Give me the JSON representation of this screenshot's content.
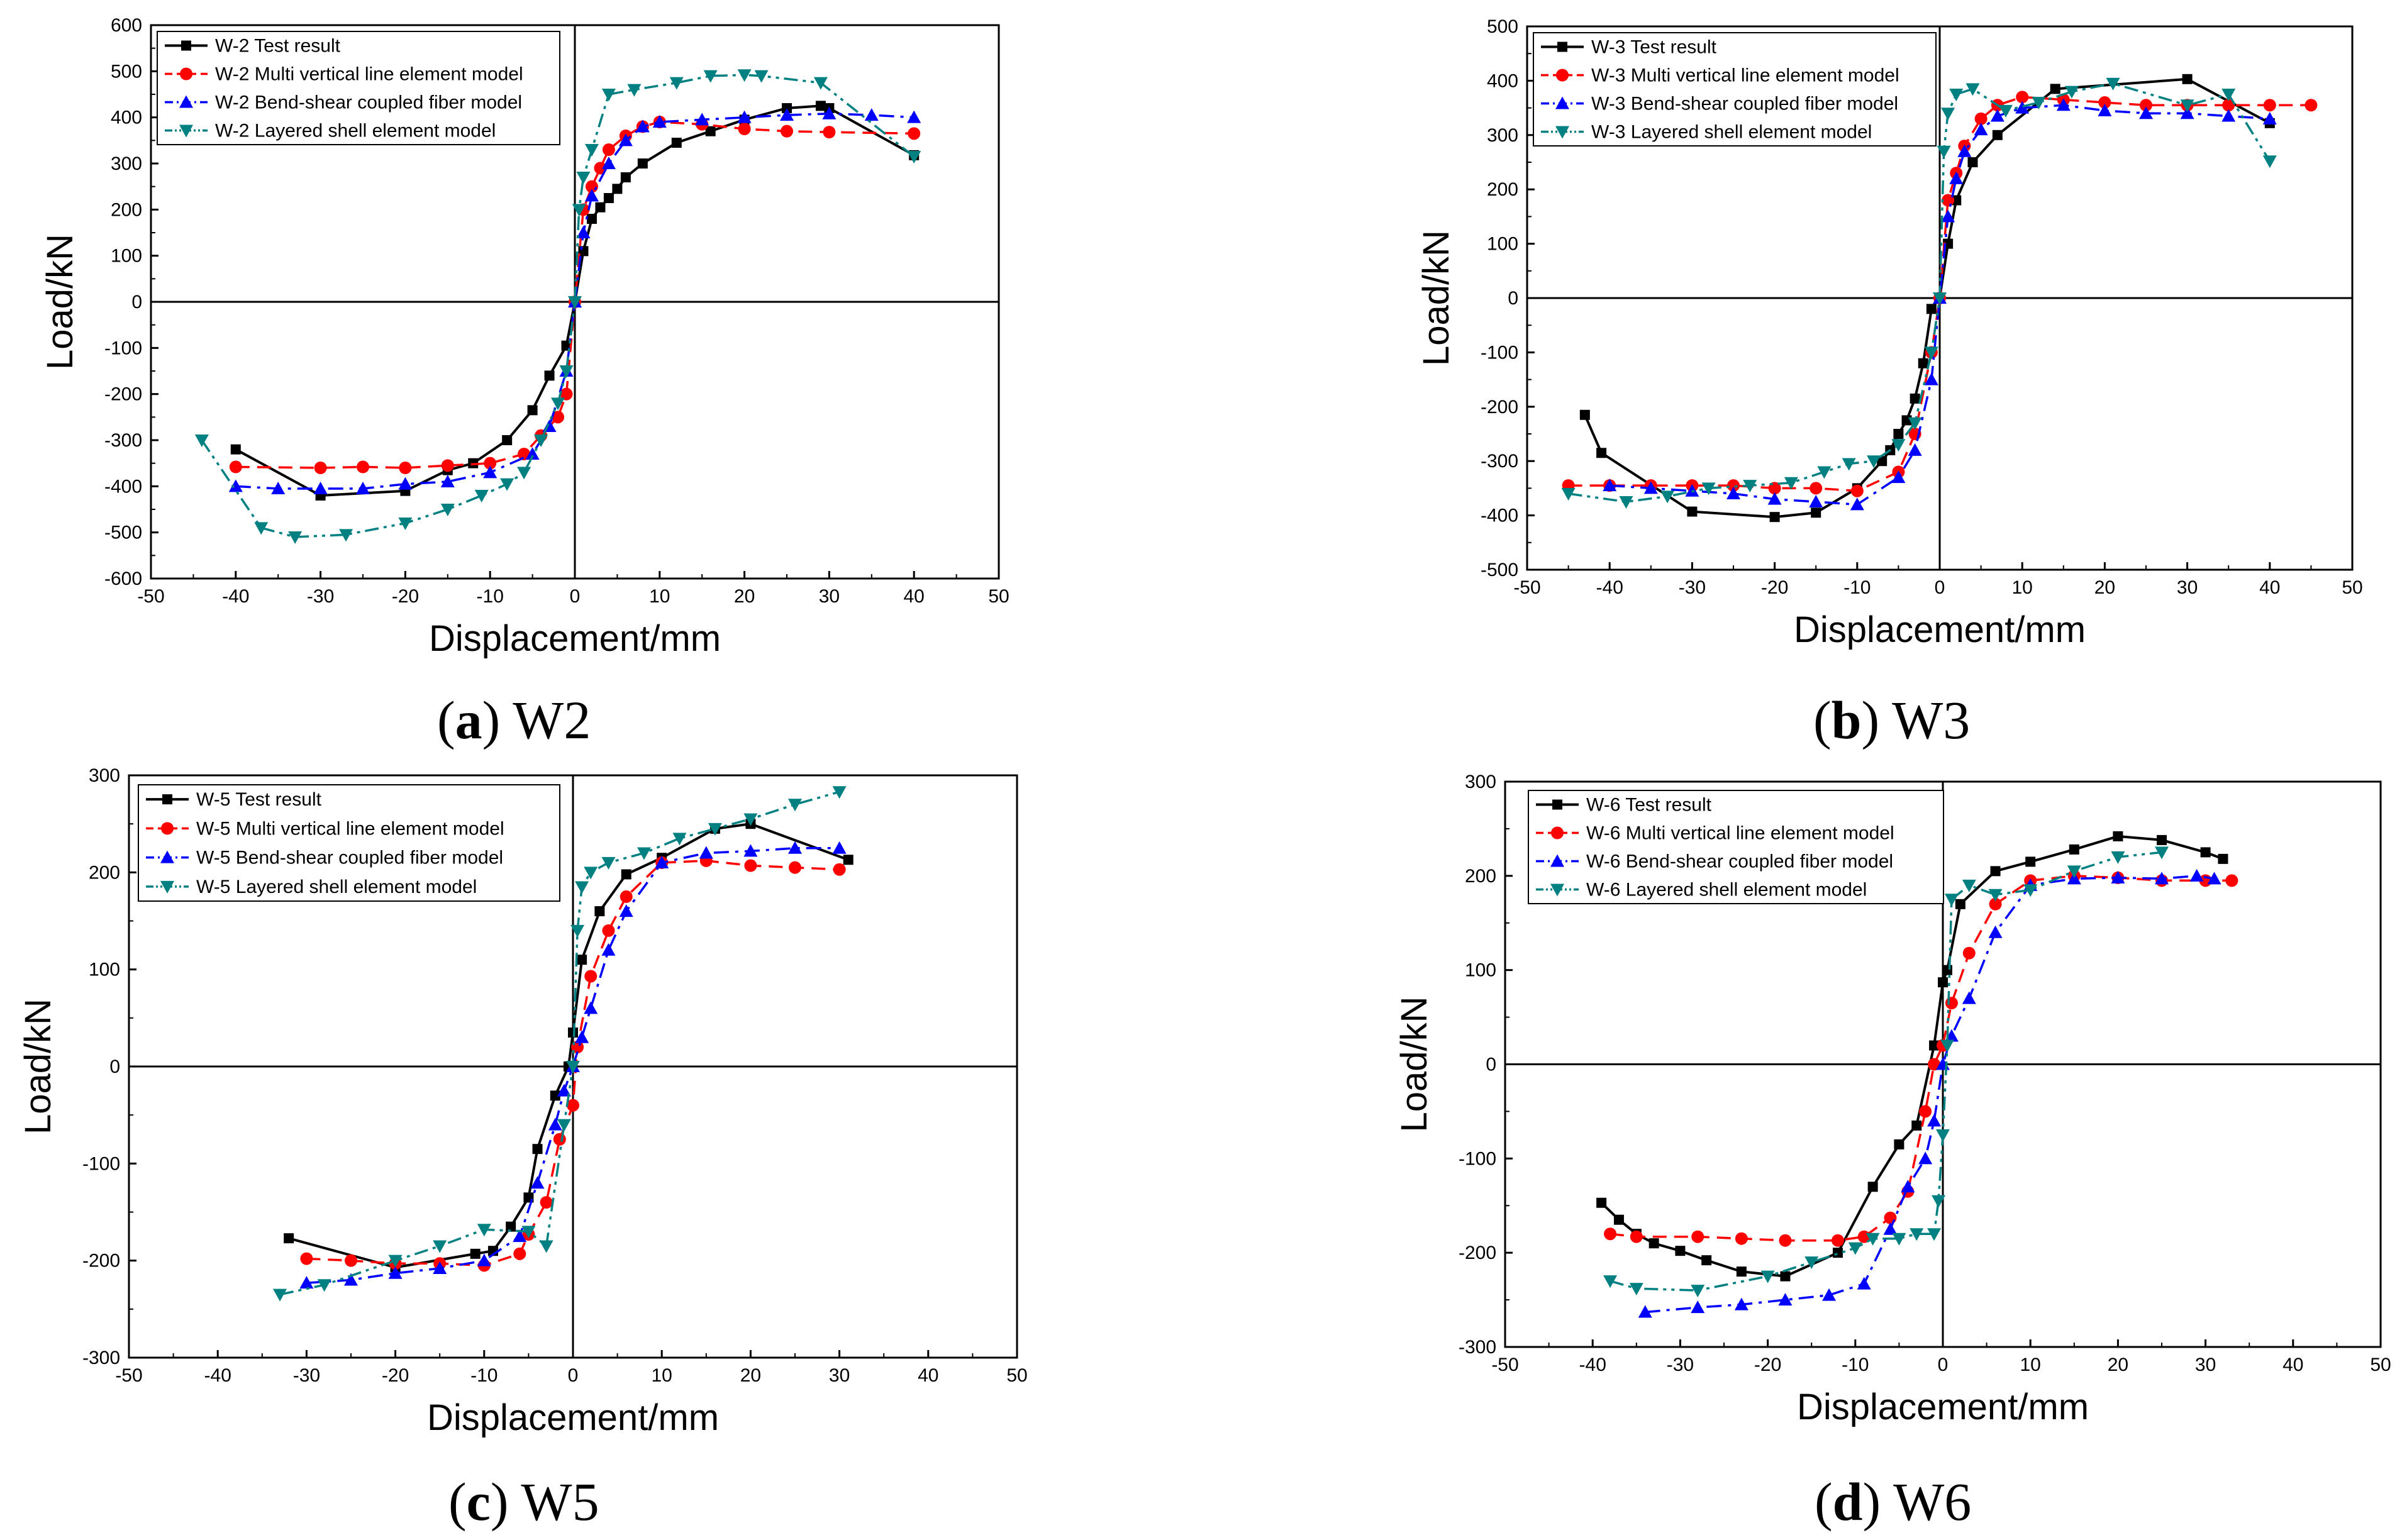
{
  "figure": {
    "panels": [
      "a",
      "b",
      "c",
      "d"
    ]
  },
  "colors": {
    "test": "#000000",
    "multi": "#ff0000",
    "bend": "#0000ff",
    "shell": "#008080"
  },
  "chart_data": [
    {
      "id": "a",
      "type": "line",
      "caption_letter": "a",
      "caption_text": "W2",
      "xlabel": "Displacement/mm",
      "ylabel": "Load/kN",
      "xlim": [
        -50,
        50
      ],
      "ylim": [
        -600,
        600
      ],
      "xticks": [
        -50,
        -40,
        -30,
        -20,
        -10,
        0,
        10,
        20,
        30,
        40,
        50
      ],
      "yticks": [
        -600,
        -500,
        -400,
        -300,
        -200,
        -100,
        0,
        100,
        200,
        300,
        400,
        500,
        600
      ],
      "legend_position": "top-left",
      "series": [
        {
          "key": "test",
          "name": "W-2 Test result",
          "style": "solid",
          "marker": "square",
          "x": [
            -40,
            -30,
            -20,
            -15,
            -12,
            -8,
            -5,
            -3,
            -1,
            0,
            1,
            2,
            3,
            4,
            5,
            6,
            8,
            12,
            16,
            20,
            25,
            29,
            30,
            40
          ],
          "y": [
            -320,
            -420,
            -410,
            -365,
            -350,
            -300,
            -235,
            -160,
            -95,
            0,
            110,
            180,
            205,
            225,
            245,
            270,
            300,
            345,
            370,
            395,
            420,
            425,
            420,
            318
          ]
        },
        {
          "key": "multi",
          "name": "W-2 Multi vertical line element model",
          "style": "dash",
          "marker": "circle",
          "x": [
            -40,
            -30,
            -25,
            -20,
            -15,
            -10,
            -6,
            -4,
            -2,
            -1,
            0,
            1,
            2,
            3,
            4,
            6,
            8,
            10,
            15,
            20,
            25,
            30,
            40
          ],
          "y": [
            -358,
            -360,
            -358,
            -360,
            -355,
            -350,
            -330,
            -290,
            -250,
            -200,
            0,
            200,
            250,
            290,
            330,
            360,
            380,
            390,
            385,
            375,
            370,
            368,
            365
          ]
        },
        {
          "key": "bend",
          "name": "W-2 Bend-shear coupled fiber model",
          "style": "dashdot",
          "marker": "triangle-up",
          "x": [
            -40,
            -35,
            -30,
            -25,
            -20,
            -15,
            -10,
            -5,
            -3,
            -1,
            0,
            1,
            2,
            4,
            6,
            8,
            10,
            15,
            20,
            25,
            30,
            35,
            40
          ],
          "y": [
            -400,
            -405,
            -405,
            -405,
            -395,
            -390,
            -370,
            -330,
            -270,
            -150,
            0,
            150,
            230,
            300,
            350,
            380,
            390,
            395,
            400,
            405,
            408,
            405,
            400
          ]
        },
        {
          "key": "shell",
          "name": "W-2 Layered shell element model",
          "style": "dashdotdot",
          "marker": "triangle-down",
          "x": [
            -44,
            -37,
            -33,
            -27,
            -20,
            -15,
            -11,
            -8,
            -6,
            -4,
            -2,
            -1,
            0,
            0.5,
            1,
            2,
            4,
            7,
            12,
            16,
            20,
            22,
            29,
            40
          ],
          "y": [
            -300,
            -490,
            -510,
            -505,
            -480,
            -450,
            -420,
            -395,
            -370,
            -300,
            -220,
            -150,
            0,
            200,
            270,
            330,
            450,
            460,
            475,
            490,
            492,
            490,
            475,
            315
          ]
        }
      ]
    },
    {
      "id": "b",
      "type": "line",
      "caption_letter": "b",
      "caption_text": "W3",
      "xlabel": "Displacement/mm",
      "ylabel": "Load/kN",
      "xlim": [
        -50,
        50
      ],
      "ylim": [
        -500,
        500
      ],
      "xticks": [
        -50,
        -40,
        -30,
        -20,
        -10,
        0,
        10,
        20,
        30,
        40,
        50
      ],
      "yticks": [
        -500,
        -400,
        -300,
        -200,
        -100,
        0,
        100,
        200,
        300,
        400,
        500
      ],
      "legend_position": "top-left",
      "series": [
        {
          "key": "test",
          "name": "W-3 Test result",
          "style": "solid",
          "marker": "square",
          "x": [
            -43,
            -41,
            -30,
            -20,
            -15,
            -10,
            -7,
            -6,
            -5,
            -4,
            -3,
            -2,
            -1,
            0,
            1,
            2,
            4,
            7,
            14,
            30,
            40
          ],
          "y": [
            -215,
            -285,
            -393,
            -403,
            -395,
            -350,
            -300,
            -280,
            -250,
            -225,
            -185,
            -120,
            -20,
            0,
            100,
            180,
            250,
            300,
            385,
            403,
            322
          ]
        },
        {
          "key": "multi",
          "name": "W-3 Multi vertical line element model",
          "style": "dash",
          "marker": "circle",
          "x": [
            -45,
            -40,
            -35,
            -30,
            -25,
            -20,
            -15,
            -10,
            -5,
            -3,
            -1,
            0,
            1,
            2,
            3,
            5,
            7,
            10,
            15,
            20,
            25,
            30,
            35,
            40,
            45
          ],
          "y": [
            -345,
            -345,
            -345,
            -345,
            -345,
            -350,
            -350,
            -355,
            -320,
            -250,
            -100,
            0,
            180,
            230,
            280,
            330,
            355,
            370,
            365,
            360,
            355,
            355,
            355,
            355,
            355
          ]
        },
        {
          "key": "bend",
          "name": "W-3 Bend-shear coupled fiber model",
          "style": "dashdot",
          "marker": "triangle-up",
          "x": [
            -40,
            -35,
            -30,
            -25,
            -20,
            -15,
            -10,
            -5,
            -3,
            -1,
            0,
            1,
            2,
            3,
            5,
            7,
            10,
            15,
            20,
            25,
            30,
            35,
            40
          ],
          "y": [
            -345,
            -350,
            -355,
            -360,
            -370,
            -375,
            -380,
            -330,
            -280,
            -150,
            0,
            150,
            220,
            270,
            310,
            335,
            350,
            355,
            345,
            340,
            340,
            335,
            330
          ]
        },
        {
          "key": "shell",
          "name": "W-3 Layered shell element model",
          "style": "dashdotdot",
          "marker": "triangle-down",
          "x": [
            -45,
            -38,
            -33,
            -28,
            -23,
            -18,
            -14,
            -11,
            -8,
            -5,
            -3,
            -1,
            0,
            0.5,
            1,
            2,
            4,
            8,
            12,
            16,
            21,
            30,
            35,
            40
          ],
          "y": [
            -360,
            -375,
            -365,
            -350,
            -345,
            -340,
            -320,
            -305,
            -300,
            -270,
            -230,
            -100,
            0,
            270,
            340,
            375,
            385,
            345,
            360,
            380,
            395,
            355,
            375,
            252
          ]
        }
      ]
    },
    {
      "id": "c",
      "type": "line",
      "caption_letter": "c",
      "caption_text": "W5",
      "xlabel": "Displacement/mm",
      "ylabel": "Load/kN",
      "xlim": [
        -50,
        50
      ],
      "ylim": [
        -300,
        300
      ],
      "xticks": [
        -50,
        -40,
        -30,
        -20,
        -10,
        0,
        10,
        20,
        30,
        40,
        50
      ],
      "yticks": [
        -300,
        -200,
        -100,
        0,
        100,
        200,
        300
      ],
      "legend_position": "top-left",
      "series": [
        {
          "key": "test",
          "name": "W-5 Test result",
          "style": "solid",
          "marker": "square",
          "x": [
            -32,
            -20,
            -11,
            -9,
            -7,
            -5,
            -4,
            -2,
            -0.5,
            0,
            1,
            3,
            6,
            10,
            16,
            20,
            31
          ],
          "y": [
            -177,
            -207,
            -193,
            -190,
            -165,
            -135,
            -85,
            -30,
            0,
            35,
            110,
            160,
            198,
            215,
            245,
            250,
            213
          ]
        },
        {
          "key": "multi",
          "name": "W-5 Multi vertical line element model",
          "style": "dash",
          "marker": "circle",
          "x": [
            -30,
            -25,
            -20,
            -15,
            -10,
            -6,
            -5,
            -3,
            -1.5,
            0,
            0.5,
            2,
            4,
            6,
            10,
            15,
            20,
            25,
            30
          ],
          "y": [
            -198,
            -200,
            -203,
            -203,
            -205,
            -193,
            -173,
            -140,
            -75,
            -40,
            20,
            93,
            140,
            175,
            210,
            212,
            207,
            205,
            203
          ]
        },
        {
          "key": "bend",
          "name": "W-5 Bend-shear coupled fiber model",
          "style": "dashdot",
          "marker": "triangle-up",
          "x": [
            -30,
            -25,
            -20,
            -15,
            -10,
            -6,
            -4,
            -2,
            -1,
            0,
            1,
            2,
            4,
            6,
            10,
            15,
            20,
            25,
            30
          ],
          "y": [
            -223,
            -220,
            -213,
            -208,
            -200,
            -175,
            -120,
            -60,
            -25,
            0,
            30,
            60,
            120,
            160,
            210,
            220,
            222,
            225,
            225
          ]
        },
        {
          "key": "shell",
          "name": "W-5 Layered shell element model",
          "style": "dashdotdot",
          "marker": "triangle-down",
          "x": [
            -33,
            -28,
            -20,
            -15,
            -10,
            -5,
            -3,
            -1,
            0,
            0.5,
            1,
            2,
            4,
            8,
            12,
            16,
            20,
            25,
            30
          ],
          "y": [
            -235,
            -225,
            -200,
            -185,
            -168,
            -170,
            -185,
            -60,
            0,
            140,
            185,
            200,
            210,
            220,
            235,
            245,
            255,
            270,
            283
          ]
        }
      ]
    },
    {
      "id": "d",
      "type": "line",
      "caption_letter": "d",
      "caption_text": "W6",
      "xlabel": "Displacement/mm",
      "ylabel": "Load/kN",
      "xlim": [
        -50,
        50
      ],
      "ylim": [
        -300,
        300
      ],
      "xticks": [
        -50,
        -40,
        -30,
        -20,
        -10,
        0,
        10,
        20,
        30,
        40,
        50
      ],
      "yticks": [
        -300,
        -200,
        -100,
        0,
        100,
        200,
        300
      ],
      "legend_position": "top-left",
      "series": [
        {
          "key": "test",
          "name": "W-6 Test result",
          "style": "solid",
          "marker": "square",
          "x": [
            -39,
            -37,
            -35,
            -33,
            -30,
            -27,
            -23,
            -18,
            -12,
            -8,
            -5,
            -3,
            -1,
            0,
            0.5,
            2,
            6,
            10,
            15,
            20,
            25,
            30,
            32
          ],
          "y": [
            -147,
            -165,
            -180,
            -190,
            -198,
            -208,
            -220,
            -225,
            -200,
            -130,
            -85,
            -65,
            20,
            87,
            100,
            170,
            205,
            215,
            228,
            242,
            238,
            225,
            218
          ]
        },
        {
          "key": "multi",
          "name": "W-6 Multi vertical line element model",
          "style": "dash",
          "marker": "circle",
          "x": [
            -38,
            -35,
            -28,
            -23,
            -18,
            -12,
            -9,
            -6,
            -4,
            -2,
            -1,
            0,
            1,
            3,
            6,
            10,
            15,
            20,
            25,
            30,
            33
          ],
          "y": [
            -180,
            -183,
            -183,
            -185,
            -187,
            -187,
            -183,
            -163,
            -135,
            -50,
            0,
            20,
            65,
            118,
            170,
            195,
            200,
            198,
            195,
            195,
            195
          ]
        },
        {
          "key": "bend",
          "name": "W-6 Bend-shear coupled fiber model",
          "style": "dashdot",
          "marker": "triangle-up",
          "x": [
            -34,
            -28,
            -23,
            -18,
            -13,
            -9,
            -6,
            -4,
            -2,
            -1,
            0,
            1,
            3,
            6,
            10,
            15,
            20,
            25,
            29,
            31
          ],
          "y": [
            -263,
            -258,
            -255,
            -250,
            -245,
            -233,
            -175,
            -130,
            -100,
            -60,
            0,
            30,
            70,
            140,
            190,
            197,
            198,
            197,
            200,
            197
          ]
        },
        {
          "key": "shell",
          "name": "W-6 Layered shell element model",
          "style": "dashdotdot",
          "marker": "triangle-down",
          "x": [
            -38,
            -35,
            -28,
            -20,
            -15,
            -10,
            -8,
            -5,
            -3,
            -1,
            -0.5,
            0,
            0.5,
            1,
            3,
            6,
            10,
            15,
            20,
            25
          ],
          "y": [
            -230,
            -238,
            -240,
            -225,
            -210,
            -195,
            -185,
            -185,
            -180,
            -180,
            -145,
            -75,
            20,
            175,
            190,
            180,
            185,
            205,
            220,
            225
          ]
        }
      ]
    }
  ]
}
